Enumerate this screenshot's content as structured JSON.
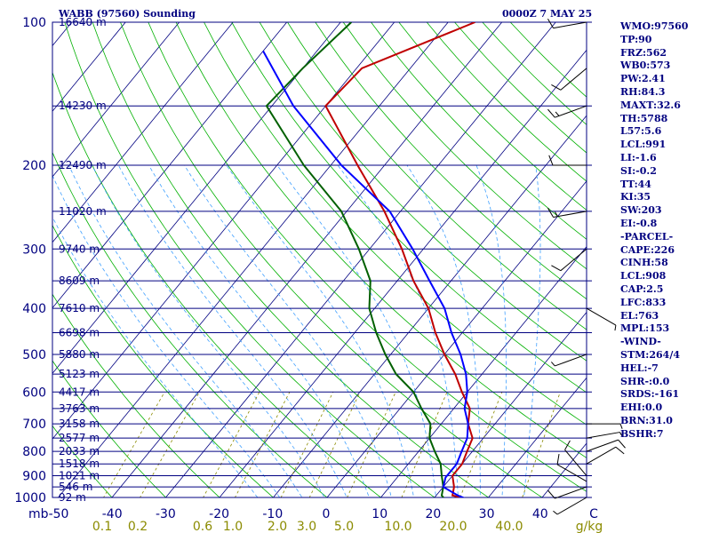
{
  "header": {
    "station": "WABB (97560) Sounding",
    "time": "0000Z  7 MAY 25"
  },
  "index_values": [
    "WMO:97560",
    "TP:90",
    "FRZ:562",
    "WB0:573",
    "PW:2.41",
    "RH:84.3",
    "MAXT:32.6",
    "TH:5788",
    "L57:5.6",
    "LCL:991",
    "LI:-1.6",
    "SI:-0.2",
    "TT:44",
    "KI:35",
    "SW:203",
    "EI:-0.8",
    "-PARCEL-",
    "CAPE:226",
    "CINH:58",
    "LCL:908",
    "CAP:2.5",
    "LFC:833",
    "EL:763",
    "MPL:153",
    "-WIND-",
    "STM:264/4",
    "HEL:-7",
    "SHR-:0.0",
    "SRDS:-161",
    "EHI:0.0",
    "BRN:31.0",
    "BSHR:7"
  ],
  "colors": {
    "isobar": "#000080",
    "isotherm": "#000080",
    "dry_adiabat": "#00b000",
    "moist_adiabat": "#40a0ff",
    "mixing_ratio": "#8b8b00",
    "temperature": "#c00000",
    "dewpoint": "#006000",
    "parcel": "#0000ff"
  },
  "chart_data": {
    "type": "line",
    "subtype": "skew-T log-P sounding",
    "pressure_unit_label": "mb",
    "temp_ticks": [
      "-50",
      "-40",
      "-30",
      "-20",
      "-10",
      "0",
      "10",
      "20",
      "30",
      "40",
      "C"
    ],
    "pressure_levels": [
      {
        "p": 100,
        "label": "100",
        "height": "16640 m"
      },
      {
        "p": 150,
        "label": "",
        "height": "14230 m"
      },
      {
        "p": 200,
        "label": "200",
        "height": "12490 m"
      },
      {
        "p": 250,
        "label": "",
        "height": "11020 m"
      },
      {
        "p": 300,
        "label": "300",
        "height": "9740 m"
      },
      {
        "p": 350,
        "label": "",
        "height": "8609 m"
      },
      {
        "p": 400,
        "label": "400",
        "height": "7610 m"
      },
      {
        "p": 450,
        "label": "",
        "height": "6698 m"
      },
      {
        "p": 500,
        "label": "500",
        "height": "5880 m"
      },
      {
        "p": 550,
        "label": "",
        "height": "5123 m"
      },
      {
        "p": 600,
        "label": "600",
        "height": "4417 m"
      },
      {
        "p": 650,
        "label": "",
        "height": "3763 m"
      },
      {
        "p": 700,
        "label": "700",
        "height": "3158 m"
      },
      {
        "p": 750,
        "label": "",
        "height": "2577 m"
      },
      {
        "p": 800,
        "label": "800",
        "height": "2033 m"
      },
      {
        "p": 850,
        "label": "",
        "height": "1518 m"
      },
      {
        "p": 900,
        "label": "900",
        "height": "1021 m"
      },
      {
        "p": 950,
        "label": "",
        "height": "546 m"
      },
      {
        "p": 1000,
        "label": "1000",
        "height": "92 m"
      }
    ],
    "mixing_ratio_labels": [
      "0.1",
      "0.2",
      "0.6",
      "1.0",
      "2.0",
      "3.0",
      "5.0",
      "10.0",
      "20.0",
      "40.0",
      "g/kg"
    ],
    "mixing_ratio_values": [
      0.1,
      0.2,
      0.6,
      1.0,
      2.0,
      3.0,
      5.0,
      10.0,
      20.0,
      40.0
    ],
    "xlim_C": [
      -50,
      50
    ],
    "ylim_mb": [
      1000,
      100
    ],
    "series": [
      {
        "key": "temperature",
        "points": [
          [
            1006,
            26
          ],
          [
            990,
            23
          ],
          [
            950,
            22
          ],
          [
            900,
            20
          ],
          [
            850,
            20
          ],
          [
            800,
            19
          ],
          [
            750,
            18
          ],
          [
            700,
            15
          ],
          [
            650,
            13
          ],
          [
            600,
            9
          ],
          [
            550,
            5
          ],
          [
            500,
            0
          ],
          [
            450,
            -5
          ],
          [
            400,
            -10
          ],
          [
            350,
            -17
          ],
          [
            300,
            -24
          ],
          [
            250,
            -33
          ],
          [
            200,
            -45
          ],
          [
            150,
            -60
          ],
          [
            125,
            -59
          ],
          [
            100,
            -45
          ]
        ]
      },
      {
        "key": "dewpoint",
        "points": [
          [
            1006,
            22
          ],
          [
            990,
            21
          ],
          [
            950,
            20
          ],
          [
            900,
            18
          ],
          [
            850,
            16
          ],
          [
            800,
            13
          ],
          [
            750,
            10
          ],
          [
            700,
            8
          ],
          [
            650,
            4
          ],
          [
            600,
            0
          ],
          [
            550,
            -6
          ],
          [
            500,
            -11
          ],
          [
            450,
            -16
          ],
          [
            400,
            -21
          ],
          [
            350,
            -25
          ],
          [
            300,
            -32
          ],
          [
            250,
            -41
          ],
          [
            200,
            -55
          ],
          [
            150,
            -71
          ],
          [
            125,
            -70
          ],
          [
            100,
            -68
          ]
        ]
      },
      {
        "key": "parcel",
        "points": [
          [
            1006,
            26
          ],
          [
            990,
            24
          ],
          [
            950,
            20
          ],
          [
            908,
            19
          ],
          [
            850,
            19
          ],
          [
            800,
            18
          ],
          [
            750,
            17
          ],
          [
            700,
            15
          ],
          [
            650,
            12
          ],
          [
            600,
            10
          ],
          [
            550,
            7
          ],
          [
            500,
            3
          ],
          [
            450,
            -2
          ],
          [
            400,
            -7
          ],
          [
            350,
            -14
          ],
          [
            300,
            -22
          ],
          [
            250,
            -32
          ],
          [
            200,
            -48
          ],
          [
            150,
            -66
          ],
          [
            115,
            -80
          ]
        ]
      }
    ],
    "wind_barbs": [
      {
        "p": 1000,
        "dir": 240,
        "kt": 5
      },
      {
        "p": 950,
        "dir": 250,
        "kt": 10
      },
      {
        "p": 925,
        "dir": 300,
        "kt": 10
      },
      {
        "p": 900,
        "dir": 320,
        "kt": 10
      },
      {
        "p": 850,
        "dir": 60,
        "kt": 10
      },
      {
        "p": 800,
        "dir": 70,
        "kt": 10
      },
      {
        "p": 750,
        "dir": 80,
        "kt": 5
      },
      {
        "p": 700,
        "dir": 90,
        "kt": 5
      },
      {
        "p": 500,
        "dir": 250,
        "kt": 5
      },
      {
        "p": 400,
        "dir": 120,
        "kt": 5
      },
      {
        "p": 300,
        "dir": 230,
        "kt": 10
      },
      {
        "p": 250,
        "dir": 260,
        "kt": 15
      },
      {
        "p": 200,
        "dir": 270,
        "kt": 10
      },
      {
        "p": 150,
        "dir": 250,
        "kt": 15
      },
      {
        "p": 125,
        "dir": 230,
        "kt": 10
      },
      {
        "p": 100,
        "dir": 260,
        "kt": 10
      }
    ]
  }
}
